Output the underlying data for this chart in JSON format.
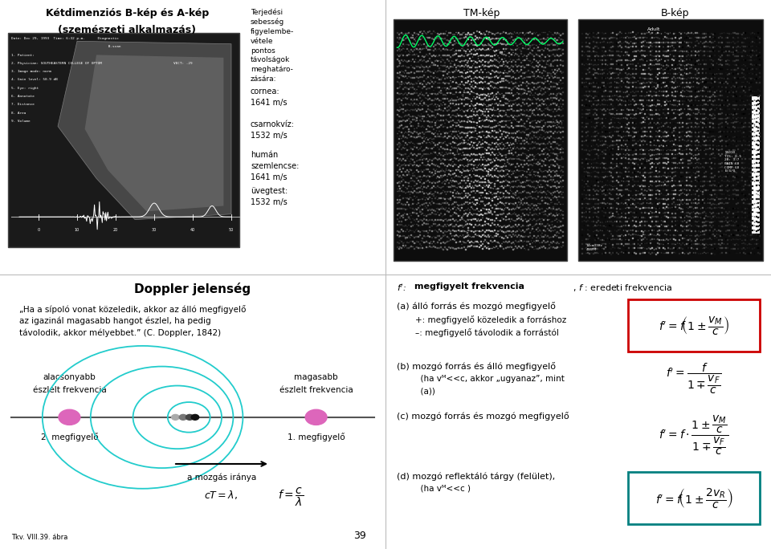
{
  "bg_color": "#ffffff",
  "top_left": {
    "title_line1": "Kétdimenziós B-kép és A-kép",
    "title_line2": "(szemészeti alkalmazás)",
    "side_text_intro": "Terjedési\nsebesség\nfigyelembe-\nvétele\npontos\ntávolságok\nmeghatáro-\nzására:",
    "items": [
      "cornea:\n1641 m/s",
      "csarnokvíz:\n1532 m/s",
      "humán\nszemlencse:\n1641 m/s",
      "üvegtest:\n1532 m/s"
    ]
  },
  "top_right": {
    "label_left": "TM-kép",
    "label_right": "B-kép"
  },
  "bottom_left": {
    "title": "Doppler jelenség",
    "quote": "„Ha a sípoló vonat közeledik, akkor az álló megfigyelő\naz igazinál magasabb hangot észlel, ha pedig\ntávolodik, akkor mélyebbet.” (C. Doppler, 1842)",
    "label_left_line1": "alacsonyabb",
    "label_left_line2": "észlelt frekvencia",
    "label_right_line1": "magasabb",
    "label_right_line2": "észlelt frekvencia",
    "label_obs1": "1. megfigyelő",
    "label_obs2": "2. megfigyelő",
    "motion_label": "a mozgás iránya",
    "page_num": "39",
    "footnote": "Tkv. VIII.39. ábra"
  },
  "bottom_right": {
    "a_label": "(a) álló forrás és mozgó megfigyelő",
    "a_sub1": "    +: megfigyelő közeledik a forráshoz",
    "a_sub2": "    –: megfigyelő távolodik a forrástól",
    "b_label": "(b) mozgó forrás és álló megfigyelő",
    "b_sub1": "      (ha vᴹ<<c, akkor „ugyanaz”, mint",
    "b_sub2": "      (a))",
    "c_label": "(c) mozgó forrás és mozgó megfigyelő",
    "d_label": "(d) mozgó reflektáló tárgy (felület),",
    "d_sub1": "      (ha vᴹ<<c )"
  }
}
